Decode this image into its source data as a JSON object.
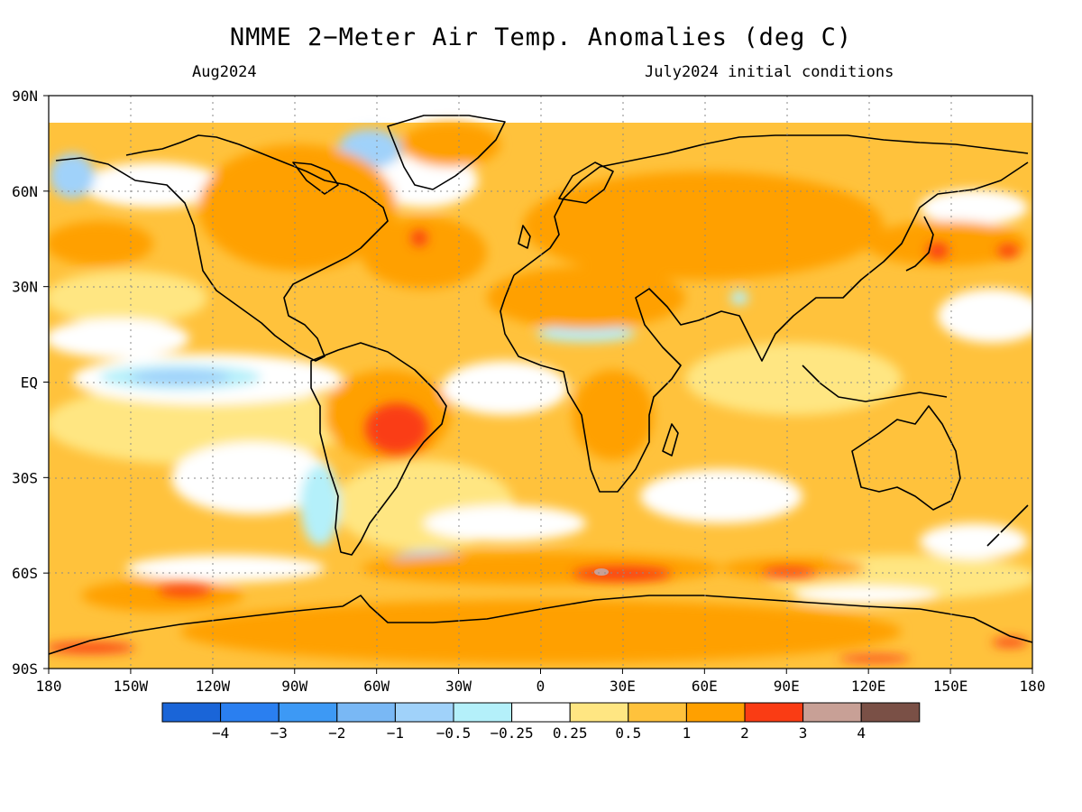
{
  "title": "NMME 2−Meter Air Temp. Anomalies (deg C)",
  "subtitle_left": "Aug2024",
  "subtitle_right": "July2024 initial conditions",
  "map": {
    "lat_ticks": [
      {
        "label": "90N",
        "lat": 90
      },
      {
        "label": "60N",
        "lat": 60
      },
      {
        "label": "30N",
        "lat": 30
      },
      {
        "label": "EQ",
        "lat": 0
      },
      {
        "label": "30S",
        "lat": -30
      },
      {
        "label": "60S",
        "lat": -60
      },
      {
        "label": "90S",
        "lat": -90
      }
    ],
    "lon_ticks": [
      {
        "label": "180",
        "lon": -180
      },
      {
        "label": "150W",
        "lon": -150
      },
      {
        "label": "120W",
        "lon": -120
      },
      {
        "label": "90W",
        "lon": -90
      },
      {
        "label": "60W",
        "lon": -60
      },
      {
        "label": "30W",
        "lon": -30
      },
      {
        "label": "0",
        "lon": 0
      },
      {
        "label": "30E",
        "lon": 30
      },
      {
        "label": "60E",
        "lon": 60
      },
      {
        "label": "90E",
        "lon": 90
      },
      {
        "label": "120E",
        "lon": 120
      },
      {
        "label": "150E",
        "lon": 150
      },
      {
        "label": "180",
        "lon": 180
      }
    ],
    "grid": "dotted",
    "lon_range": [
      -180,
      180
    ],
    "lat_range": [
      -90,
      90
    ]
  },
  "colorbar": {
    "colors": [
      "#1a65d8",
      "#2a7ff0",
      "#3d99f5",
      "#79b8f5",
      "#a0d2fa",
      "#b4f0fa",
      "#ffffff",
      "#ffe682",
      "#ffc23c",
      "#ffa000",
      "#fa3c14",
      "#c8a096",
      "#7a5046"
    ],
    "labels": [
      "−4",
      "−3",
      "−2",
      "−1",
      "−0.5",
      "−0.25",
      "0.25",
      "0.5",
      "1",
      "2",
      "3",
      "4"
    ]
  },
  "colors": {
    "warm_mid": "#ffc23c",
    "warm_high": "#ffa000",
    "warm_low": "#ffe682",
    "hot": "#fa3c14",
    "cool_light": "#b4f0fa",
    "cool_mid": "#a0d2fa",
    "cool_deep": "#79b8f5",
    "coast": "#000000"
  }
}
